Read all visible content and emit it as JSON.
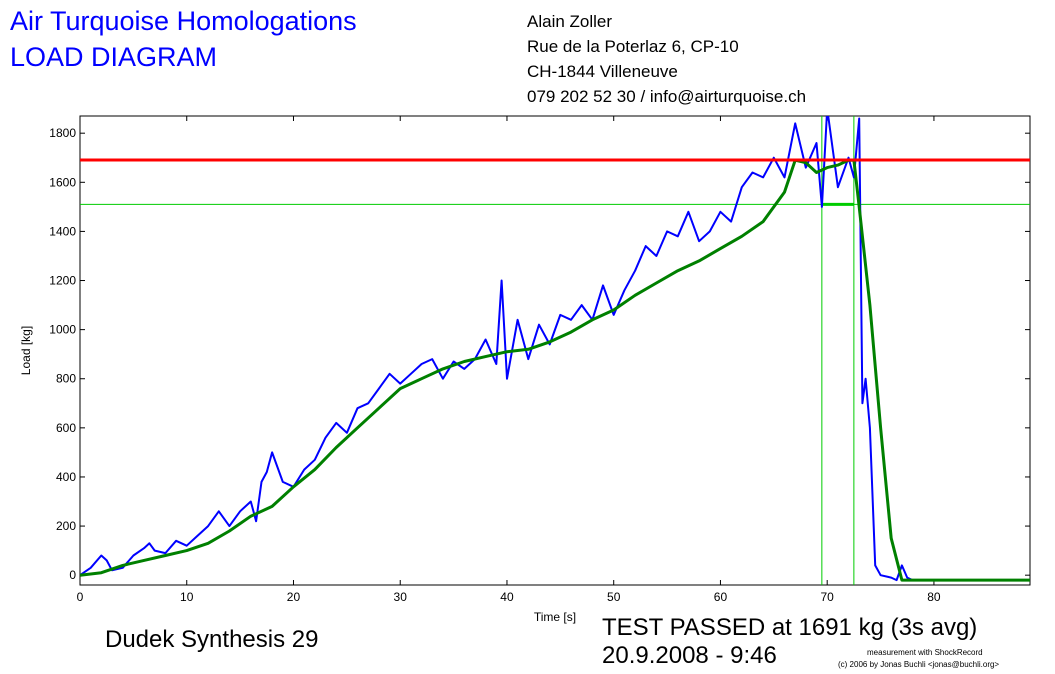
{
  "header": {
    "company": "Air Turquoise Homologations",
    "doc_type": "LOAD DIAGRAM",
    "address": [
      "Alain Zoller",
      "Rue de la Poterlaz 6, CP-10",
      "CH-1844 Villeneuve",
      "079 202 52 30 / info@airturquoise.ch"
    ]
  },
  "footer": {
    "glider": "Dudek Synthesis 29",
    "result": "TEST PASSED at 1691 kg (3s avg)",
    "datetime": "20.9.2008 - 9:46",
    "credit1": "measurement with ShockRecord",
    "credit2": "(c) 2006 by Jonas Buchli <jonas@buchli.org>"
  },
  "chart_data": {
    "type": "line",
    "xlabel": "Time [s]",
    "ylabel": "Load [kg]",
    "xlim": [
      0,
      89
    ],
    "ylim": [
      -40,
      1870
    ],
    "xticks": [
      0,
      10,
      20,
      30,
      40,
      50,
      60,
      70,
      80
    ],
    "yticks": [
      0,
      200,
      400,
      600,
      800,
      1000,
      1200,
      1400,
      1600,
      1800
    ],
    "grid": false,
    "colors": {
      "raw": "#0000ff",
      "avg": "#008000",
      "limit": "#ff0000",
      "marker": "#00cc00"
    },
    "reference_lines": {
      "limit_load": 1691,
      "threshold_load": 1510,
      "window_start": 69.5,
      "window_end": 72.5
    },
    "series": [
      {
        "key": "raw",
        "x": [
          0,
          1,
          2,
          2.5,
          3,
          4,
          5,
          6,
          6.5,
          7,
          8,
          9,
          10,
          11,
          12,
          13,
          13.5,
          14,
          15,
          16,
          16.5,
          17,
          17.5,
          18,
          19,
          20,
          21,
          22,
          23,
          24,
          25,
          26,
          27,
          28,
          29,
          30,
          31,
          32,
          33,
          34,
          35,
          36,
          37,
          38,
          39,
          39.5,
          40,
          41,
          42,
          43,
          44,
          45,
          46,
          47,
          48,
          49,
          50,
          51,
          52,
          53,
          54,
          55,
          56,
          57,
          58,
          59,
          60,
          61,
          62,
          63,
          64,
          65,
          66,
          67,
          68,
          69,
          69.5,
          70,
          71,
          72,
          72.5,
          73,
          73.3,
          73.6,
          74,
          74.5,
          75,
          76,
          76.5,
          77,
          77.5,
          78,
          80,
          85,
          89
        ],
        "y": [
          0,
          30,
          80,
          60,
          20,
          30,
          80,
          110,
          130,
          100,
          90,
          140,
          120,
          160,
          200,
          260,
          230,
          200,
          260,
          300,
          220,
          380,
          420,
          500,
          380,
          360,
          430,
          470,
          560,
          620,
          580,
          680,
          700,
          760,
          820,
          780,
          820,
          860,
          880,
          800,
          870,
          840,
          880,
          960,
          860,
          1200,
          800,
          1040,
          880,
          1020,
          940,
          1060,
          1040,
          1100,
          1040,
          1180,
          1060,
          1160,
          1240,
          1340,
          1300,
          1400,
          1380,
          1480,
          1360,
          1400,
          1480,
          1440,
          1580,
          1640,
          1620,
          1700,
          1620,
          1840,
          1660,
          1760,
          1500,
          1900,
          1580,
          1700,
          1620,
          1860,
          700,
          800,
          600,
          40,
          0,
          -10,
          -20,
          40,
          -10,
          -20,
          -20,
          -20,
          -20
        ]
      },
      {
        "key": "avg",
        "x": [
          0,
          2,
          4,
          6,
          8,
          10,
          12,
          14,
          16,
          18,
          20,
          22,
          24,
          26,
          28,
          30,
          32,
          34,
          36,
          38,
          40,
          42,
          44,
          46,
          48,
          50,
          52,
          54,
          56,
          58,
          60,
          62,
          64,
          66,
          67,
          68,
          69,
          70,
          71,
          72,
          72.5,
          73,
          74,
          75,
          76,
          77,
          78,
          80,
          85,
          89
        ],
        "y": [
          0,
          10,
          40,
          60,
          80,
          100,
          130,
          180,
          240,
          280,
          360,
          430,
          520,
          600,
          680,
          760,
          800,
          840,
          870,
          890,
          910,
          920,
          950,
          990,
          1040,
          1080,
          1140,
          1190,
          1240,
          1280,
          1330,
          1380,
          1440,
          1560,
          1690,
          1680,
          1640,
          1660,
          1670,
          1690,
          1690,
          1500,
          1100,
          600,
          150,
          -20,
          -20,
          -20,
          -20,
          -20
        ]
      }
    ]
  }
}
